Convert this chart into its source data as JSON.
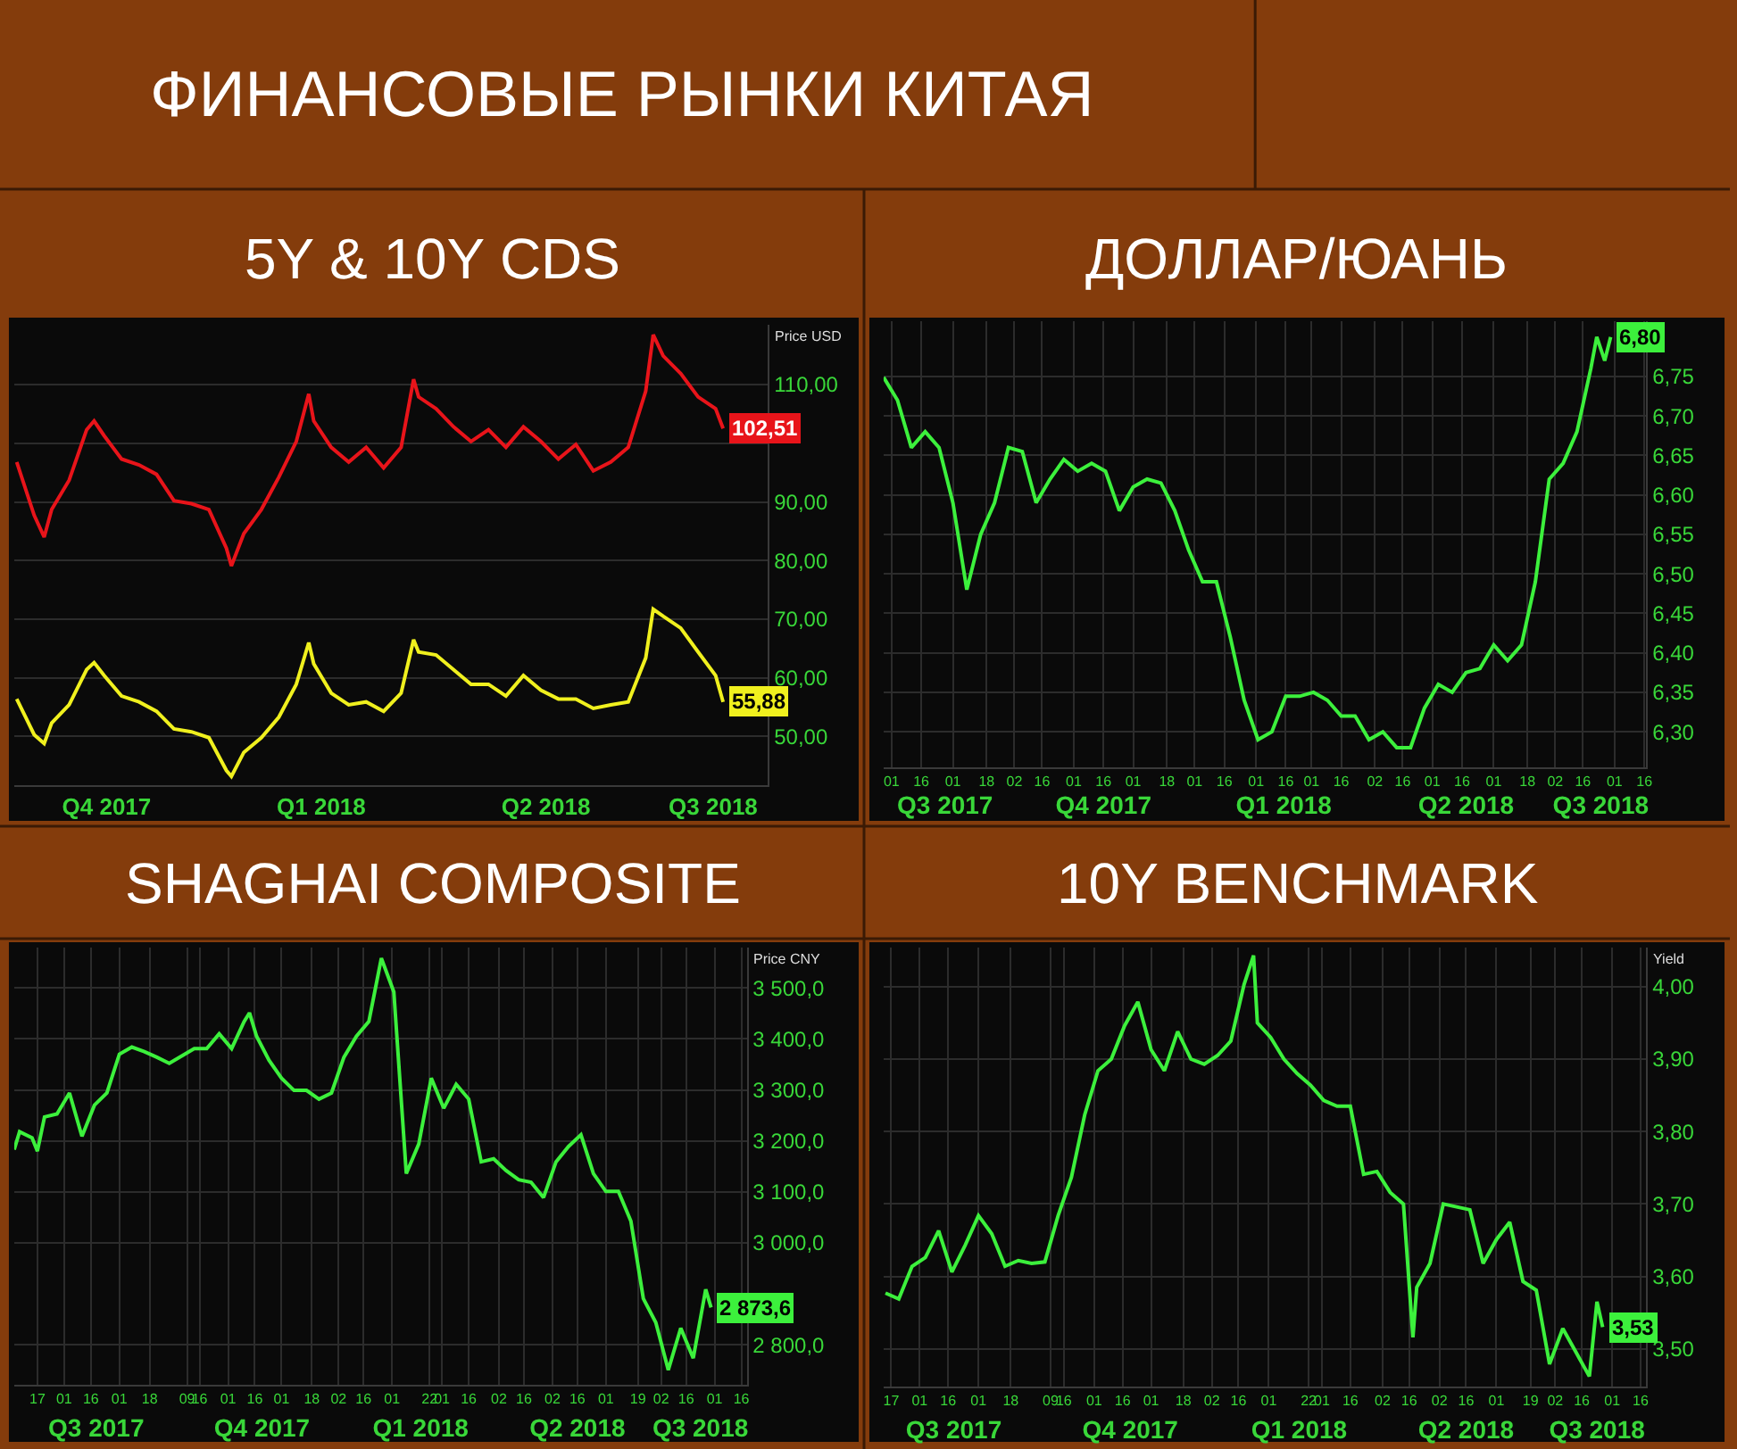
{
  "chart_data": [
    {
      "type": "line",
      "title": "5Y & 10Y CDS",
      "ylabel": "Price USD",
      "annotations": [
        "ФИНАНСОВЫЕ РЫНКИ КИТАЯ"
      ],
      "x": [
        "2017-10-16",
        "2017-10-23",
        "2017-10-27",
        "2017-10-30",
        "2017-11-06",
        "2017-11-13",
        "2017-11-16",
        "2017-11-20",
        "2017-11-27",
        "2017-12-04",
        "2017-12-11",
        "2017-12-18",
        "2017-12-25",
        "2018-01-01",
        "2018-01-08",
        "2018-01-10",
        "2018-01-15",
        "2018-01-22",
        "2018-01-29",
        "2018-02-05",
        "2018-02-10",
        "2018-02-12",
        "2018-02-19",
        "2018-02-26",
        "2018-03-05",
        "2018-03-12",
        "2018-03-19",
        "2018-03-24",
        "2018-03-26",
        "2018-04-02",
        "2018-04-09",
        "2018-04-16",
        "2018-04-23",
        "2018-04-30",
        "2018-05-07",
        "2018-05-14",
        "2018-05-21",
        "2018-05-28",
        "2018-06-04",
        "2018-06-11",
        "2018-06-18",
        "2018-06-25",
        "2018-06-28",
        "2018-07-02",
        "2018-07-09",
        "2018-07-16",
        "2018-07-23",
        "2018-07-26"
      ],
      "series": [
        {
          "color": "#e8141a",
          "values": [
            96.8,
            87.7,
            84,
            88.7,
            93.7,
            102.3,
            103.8,
            101.3,
            97.3,
            96.3,
            94.7,
            90.2,
            89.7,
            88.7,
            82.1,
            79.1,
            84.6,
            88.7,
            94.2,
            100.3,
            108.4,
            103.8,
            99.3,
            96.8,
            99.3,
            95.8,
            99.3,
            110.9,
            107.9,
            105.9,
            102.8,
            100.3,
            102.3,
            99.3,
            102.8,
            100.3,
            97.3,
            99.8,
            95.3,
            96.8,
            99.3,
            108.9,
            118.5,
            114.9,
            111.9,
            107.9,
            105.9,
            102.51
          ],
          "value_labels": [
            null,
            null,
            null,
            null,
            null,
            null,
            null,
            null,
            null,
            null,
            null,
            null,
            null,
            null,
            null,
            null,
            null,
            null,
            null,
            null,
            null,
            null,
            null,
            null,
            null,
            null,
            null,
            null,
            null,
            null,
            null,
            null,
            null,
            null,
            null,
            null,
            null,
            null,
            null,
            null,
            null,
            null,
            null,
            null,
            null,
            null,
            null,
            "102,51"
          ]
        },
        {
          "color": "#f0f01e",
          "values": [
            56.4,
            50.3,
            48.8,
            52.3,
            55.4,
            61.4,
            62.6,
            60.4,
            56.9,
            55.9,
            54.3,
            51.3,
            50.8,
            49.8,
            44.2,
            43.2,
            47.3,
            49.8,
            53.3,
            58.9,
            66,
            62.4,
            57.4,
            55.4,
            55.9,
            54.3,
            57.4,
            66.5,
            64.4,
            63.9,
            61.4,
            58.9,
            58.9,
            56.9,
            60.4,
            57.9,
            56.4,
            56.4,
            54.8,
            55.4,
            55.9,
            63.4,
            71.7,
            70.5,
            68.5,
            64.4,
            60.4,
            55.88
          ],
          "value_labels": [
            null,
            null,
            null,
            null,
            null,
            null,
            null,
            null,
            null,
            null,
            null,
            null,
            null,
            null,
            null,
            null,
            null,
            null,
            null,
            null,
            null,
            null,
            null,
            null,
            null,
            null,
            null,
            null,
            null,
            null,
            null,
            null,
            null,
            null,
            null,
            null,
            null,
            null,
            null,
            null,
            null,
            null,
            null,
            null,
            null,
            null,
            null,
            "55,88"
          ]
        }
      ],
      "xlim": [
        "2017-10-15",
        "2018-08-13"
      ],
      "xticks": [
        {
          "value": "2017-11-21",
          "label": "Q4 2017"
        },
        {
          "value": "2018-02-15",
          "label": "Q1 2018"
        },
        {
          "value": "2018-05-16",
          "label": "Q2 2018"
        },
        {
          "value": "2018-07-22",
          "label": "Q3 2018"
        }
      ],
      "ylim": [
        41.7,
        120.2
      ],
      "yticks": [
        {
          "value": 50,
          "label": "50,00"
        },
        {
          "value": 60,
          "label": "60,00"
        },
        {
          "value": 70,
          "label": "70,00"
        },
        {
          "value": 80,
          "label": "80,00"
        },
        {
          "value": 90,
          "label": "90,00"
        },
        {
          "value": 100,
          "label": null
        },
        {
          "value": 110,
          "label": "110,00"
        }
      ],
      "grid": "y"
    },
    {
      "type": "line",
      "title": "ДОЛЛАР/ЮАНЬ",
      "x": [
        "2017-07-28",
        "2017-08-04",
        "2017-08-11",
        "2017-08-18",
        "2017-08-25",
        "2017-09-01",
        "2017-09-08",
        "2017-09-15",
        "2017-09-22",
        "2017-09-29",
        "2017-10-06",
        "2017-10-13",
        "2017-10-20",
        "2017-10-27",
        "2017-11-03",
        "2017-11-10",
        "2017-11-17",
        "2017-11-24",
        "2017-12-01",
        "2017-12-08",
        "2017-12-15",
        "2017-12-22",
        "2017-12-29",
        "2018-01-05",
        "2018-01-12",
        "2018-01-19",
        "2018-01-26",
        "2018-02-02",
        "2018-02-09",
        "2018-02-16",
        "2018-02-23",
        "2018-03-02",
        "2018-03-09",
        "2018-03-16",
        "2018-03-23",
        "2018-03-30",
        "2018-04-06",
        "2018-04-13",
        "2018-04-20",
        "2018-04-27",
        "2018-05-04",
        "2018-05-11",
        "2018-05-18",
        "2018-05-25",
        "2018-06-01",
        "2018-06-08",
        "2018-06-15",
        "2018-06-22",
        "2018-06-29",
        "2018-07-06",
        "2018-07-13",
        "2018-07-20",
        "2018-07-23",
        "2018-07-27",
        "2018-07-30"
      ],
      "series": [
        {
          "color": "#3cf03c",
          "values": [
            6.749,
            6.72,
            6.66,
            6.68,
            6.66,
            6.59,
            6.48,
            6.55,
            6.59,
            6.66,
            6.655,
            6.59,
            6.62,
            6.645,
            6.63,
            6.64,
            6.63,
            6.58,
            6.61,
            6.62,
            6.615,
            6.58,
            6.53,
            6.49,
            6.49,
            6.42,
            6.34,
            6.29,
            6.3,
            6.345,
            6.345,
            6.35,
            6.34,
            6.32,
            6.32,
            6.29,
            6.3,
            6.28,
            6.28,
            6.33,
            6.36,
            6.35,
            6.375,
            6.38,
            6.41,
            6.39,
            6.41,
            6.49,
            6.62,
            6.64,
            6.68,
            6.76,
            6.8,
            6.77,
            6.8
          ],
          "value_labels": [
            null,
            null,
            null,
            null,
            null,
            null,
            null,
            null,
            null,
            null,
            null,
            null,
            null,
            null,
            null,
            null,
            null,
            null,
            null,
            null,
            null,
            null,
            null,
            null,
            null,
            null,
            null,
            null,
            null,
            null,
            null,
            null,
            null,
            null,
            null,
            null,
            null,
            null,
            null,
            null,
            null,
            null,
            null,
            null,
            null,
            null,
            null,
            null,
            null,
            null,
            null,
            null,
            null,
            null,
            "6,80"
          ]
        }
      ],
      "xlim": [
        "2017-07-28",
        "2018-08-17"
      ],
      "xticks": [
        {
          "value": "2017-08-01",
          "label": "01"
        },
        {
          "value": "2017-08-16",
          "label": "16"
        },
        {
          "value": "2017-09-01",
          "label": "01"
        },
        {
          "value": "2017-09-18",
          "label": "18"
        },
        {
          "value": "2017-10-02",
          "label": "02"
        },
        {
          "value": "2017-10-16",
          "label": "16"
        },
        {
          "value": "2017-11-01",
          "label": "01"
        },
        {
          "value": "2017-11-16",
          "label": "16"
        },
        {
          "value": "2017-12-01",
          "label": "01"
        },
        {
          "value": "2017-12-18",
          "label": "18"
        },
        {
          "value": "2018-01-01",
          "label": "01"
        },
        {
          "value": "2018-01-16",
          "label": "16"
        },
        {
          "value": "2018-02-01",
          "label": "01"
        },
        {
          "value": "2018-02-16",
          "label": "16"
        },
        {
          "value": "2018-03-01",
          "label": "01"
        },
        {
          "value": "2018-03-16",
          "label": "16"
        },
        {
          "value": "2018-04-02",
          "label": "02"
        },
        {
          "value": "2018-04-16",
          "label": "16"
        },
        {
          "value": "2018-05-01",
          "label": "01"
        },
        {
          "value": "2018-05-16",
          "label": "16"
        },
        {
          "value": "2018-06-01",
          "label": "01"
        },
        {
          "value": "2018-06-18",
          "label": "18"
        },
        {
          "value": "2018-07-02",
          "label": "02"
        },
        {
          "value": "2018-07-16",
          "label": "16"
        },
        {
          "value": "2018-08-01",
          "label": "01"
        },
        {
          "value": "2018-08-16",
          "label": "16"
        }
      ],
      "x2lim": [
        "2017-07-28",
        "2018-08-17"
      ],
      "x2ticks": [
        {
          "value": "2017-08-28",
          "label": "Q3 2017"
        },
        {
          "value": "2017-11-16",
          "label": "Q4 2017"
        },
        {
          "value": "2018-02-15",
          "label": "Q1 2018"
        },
        {
          "value": "2018-05-18",
          "label": "Q2 2018"
        },
        {
          "value": "2018-07-25",
          "label": "Q3 2018"
        }
      ],
      "ylim": [
        6.255,
        6.82
      ],
      "yticks": [
        {
          "value": 6.3,
          "label": "6,30"
        },
        {
          "value": 6.35,
          "label": "6,35"
        },
        {
          "value": 6.4,
          "label": "6,40"
        },
        {
          "value": 6.45,
          "label": "6,45"
        },
        {
          "value": 6.5,
          "label": "6,50"
        },
        {
          "value": 6.55,
          "label": "6,55"
        },
        {
          "value": 6.6,
          "label": "6,60"
        },
        {
          "value": 6.65,
          "label": "6,65"
        },
        {
          "value": 6.7,
          "label": "6,70"
        },
        {
          "value": 6.75,
          "label": "6,75"
        }
      ],
      "grid": true
    },
    {
      "type": "line",
      "title": "SHAGHAI COMPOSITE",
      "ylabel": "Price CNY",
      "x": [
        "2017-07-04",
        "2017-07-07",
        "2017-07-14",
        "2017-07-17",
        "2017-07-21",
        "2017-07-28",
        "2017-08-04",
        "2017-08-11",
        "2017-08-18",
        "2017-08-25",
        "2017-09-01",
        "2017-09-08",
        "2017-09-15",
        "2017-09-22",
        "2017-09-29",
        "2017-10-13",
        "2017-10-20",
        "2017-10-27",
        "2017-11-03",
        "2017-11-10",
        "2017-11-13",
        "2017-11-17",
        "2017-11-24",
        "2017-12-01",
        "2017-12-08",
        "2017-12-15",
        "2017-12-22",
        "2017-12-29",
        "2018-01-05",
        "2018-01-12",
        "2018-01-19",
        "2018-01-26",
        "2018-02-02",
        "2018-02-09",
        "2018-02-16",
        "2018-02-23",
        "2018-03-02",
        "2018-03-09",
        "2018-03-16",
        "2018-03-23",
        "2018-03-30",
        "2018-04-06",
        "2018-04-13",
        "2018-04-20",
        "2018-04-27",
        "2018-05-04",
        "2018-05-11",
        "2018-05-18",
        "2018-05-25",
        "2018-06-01",
        "2018-06-08",
        "2018-06-15",
        "2018-06-22",
        "2018-06-29",
        "2018-07-06",
        "2018-07-13",
        "2018-07-20",
        "2018-07-27",
        "2018-07-30"
      ],
      "series": [
        {
          "color": "#3cf03c",
          "values": [
            3183,
            3218,
            3206,
            3180,
            3247,
            3253,
            3294,
            3209,
            3270,
            3294,
            3370,
            3384,
            3375,
            3364,
            3352,
            3381,
            3381,
            3410,
            3381,
            3434,
            3451,
            3405,
            3358,
            3323,
            3299,
            3299,
            3282,
            3294,
            3364,
            3405,
            3434,
            3558,
            3492,
            3136,
            3194,
            3323,
            3264,
            3311,
            3282,
            3159,
            3165,
            3142,
            3124,
            3119,
            3089,
            3159,
            3189,
            3212,
            3136,
            3101,
            3101,
            3043,
            2891,
            2844,
            2751,
            2833,
            2774,
            2909,
            2873.6
          ],
          "value_labels": [
            null,
            null,
            null,
            null,
            null,
            null,
            null,
            null,
            null,
            null,
            null,
            null,
            null,
            null,
            null,
            null,
            null,
            null,
            null,
            null,
            null,
            null,
            null,
            null,
            null,
            null,
            null,
            null,
            null,
            null,
            null,
            null,
            null,
            null,
            null,
            null,
            null,
            null,
            null,
            null,
            null,
            null,
            null,
            null,
            null,
            null,
            null,
            null,
            null,
            null,
            null,
            null,
            null,
            null,
            null,
            null,
            null,
            null,
            "2 873,6"
          ]
        }
      ],
      "xlim": [
        "2017-07-04",
        "2018-08-19"
      ],
      "xticks": [
        {
          "value": "2017-07-17",
          "label": "17"
        },
        {
          "value": "2017-08-01",
          "label": "01"
        },
        {
          "value": "2017-08-16",
          "label": "16"
        },
        {
          "value": "2017-09-01",
          "label": "01"
        },
        {
          "value": "2017-09-18",
          "label": "18"
        },
        {
          "value": "2017-10-09",
          "label": "09"
        },
        {
          "value": "2017-10-16",
          "label": "16"
        },
        {
          "value": "2017-11-01",
          "label": "01"
        },
        {
          "value": "2017-11-16",
          "label": "16"
        },
        {
          "value": "2017-12-01",
          "label": "01"
        },
        {
          "value": "2017-12-18",
          "label": "18"
        },
        {
          "value": "2018-01-02",
          "label": "02"
        },
        {
          "value": "2018-01-16",
          "label": "16"
        },
        {
          "value": "2018-02-01",
          "label": "01"
        },
        {
          "value": "2018-02-22",
          "label": "22"
        },
        {
          "value": "2018-03-01",
          "label": "01"
        },
        {
          "value": "2018-03-16",
          "label": "16"
        },
        {
          "value": "2018-04-02",
          "label": "02"
        },
        {
          "value": "2018-04-16",
          "label": "16"
        },
        {
          "value": "2018-05-02",
          "label": "02"
        },
        {
          "value": "2018-05-16",
          "label": "16"
        },
        {
          "value": "2018-06-01",
          "label": "01"
        },
        {
          "value": "2018-06-19",
          "label": "19"
        },
        {
          "value": "2018-07-02",
          "label": "02"
        },
        {
          "value": "2018-07-16",
          "label": "16"
        },
        {
          "value": "2018-08-01",
          "label": "01"
        },
        {
          "value": "2018-08-16",
          "label": "16"
        }
      ],
      "x2lim": [
        "2017-07-04",
        "2018-08-19"
      ],
      "x2ticks": [
        {
          "value": "2017-08-19",
          "label": "Q3 2017"
        },
        {
          "value": "2017-11-20",
          "label": "Q4 2017"
        },
        {
          "value": "2018-02-17",
          "label": "Q1 2018"
        },
        {
          "value": "2018-05-16",
          "label": "Q2 2018"
        },
        {
          "value": "2018-07-24",
          "label": "Q3 2018"
        }
      ],
      "ylim": [
        2722,
        3579
      ],
      "yticks": [
        {
          "value": 2800,
          "label": "2 800,0"
        },
        {
          "value": 3000,
          "label": "3 000,0"
        },
        {
          "value": 3100,
          "label": "3 100,0"
        },
        {
          "value": 3200,
          "label": "3 200,0"
        },
        {
          "value": 3300,
          "label": "3 300,0"
        },
        {
          "value": 3400,
          "label": "3 400,0"
        },
        {
          "value": 3500,
          "label": "3 500,0"
        }
      ],
      "grid": true
    },
    {
      "type": "line",
      "title": "10Y BENCHMARK",
      "ylabel": "Yield",
      "x": [
        "2017-07-14",
        "2017-07-21",
        "2017-07-28",
        "2017-08-04",
        "2017-08-11",
        "2017-08-18",
        "2017-08-25",
        "2017-09-01",
        "2017-09-08",
        "2017-09-15",
        "2017-09-22",
        "2017-09-29",
        "2017-10-06",
        "2017-10-13",
        "2017-10-20",
        "2017-10-27",
        "2017-11-03",
        "2017-11-10",
        "2017-11-17",
        "2017-11-24",
        "2017-12-01",
        "2017-12-08",
        "2017-12-15",
        "2017-12-22",
        "2017-12-29",
        "2018-01-05",
        "2018-01-12",
        "2018-01-19",
        "2018-01-24",
        "2018-01-26",
        "2018-02-02",
        "2018-02-09",
        "2018-02-16",
        "2018-02-23",
        "2018-03-02",
        "2018-03-09",
        "2018-03-16",
        "2018-03-23",
        "2018-03-30",
        "2018-04-06",
        "2018-04-13",
        "2018-04-18",
        "2018-04-20",
        "2018-04-27",
        "2018-05-04",
        "2018-05-11",
        "2018-05-18",
        "2018-05-25",
        "2018-06-01",
        "2018-06-08",
        "2018-06-15",
        "2018-06-22",
        "2018-06-29",
        "2018-07-06",
        "2018-07-13",
        "2018-07-20",
        "2018-07-24",
        "2018-07-27"
      ],
      "series": [
        {
          "color": "#3cf03c",
          "values": [
            3.577,
            3.569,
            3.614,
            3.626,
            3.663,
            3.606,
            3.643,
            3.684,
            3.659,
            3.614,
            3.622,
            3.618,
            3.62,
            3.684,
            3.737,
            3.823,
            3.884,
            3.9,
            3.946,
            3.979,
            3.913,
            3.884,
            3.938,
            3.9,
            3.893,
            3.905,
            3.925,
            4.003,
            4.043,
            3.95,
            3.93,
            3.9,
            3.88,
            3.864,
            3.843,
            3.835,
            3.835,
            3.741,
            3.745,
            3.716,
            3.7,
            3.516,
            3.585,
            3.618,
            3.7,
            3.696,
            3.692,
            3.618,
            3.651,
            3.675,
            3.593,
            3.581,
            3.479,
            3.528,
            3.495,
            3.462,
            3.565,
            3.53
          ],
          "value_labels": [
            null,
            null,
            null,
            null,
            null,
            null,
            null,
            null,
            null,
            null,
            null,
            null,
            null,
            null,
            null,
            null,
            null,
            null,
            null,
            null,
            null,
            null,
            null,
            null,
            null,
            null,
            null,
            null,
            null,
            null,
            null,
            null,
            null,
            null,
            null,
            null,
            null,
            null,
            null,
            null,
            null,
            null,
            null,
            null,
            null,
            null,
            null,
            null,
            null,
            null,
            null,
            null,
            null,
            null,
            null,
            null,
            null,
            "3,53"
          ]
        }
      ],
      "xlim": [
        "2017-07-13",
        "2018-08-19"
      ],
      "xticks": [
        {
          "value": "2017-07-17",
          "label": "17"
        },
        {
          "value": "2017-08-01",
          "label": "01"
        },
        {
          "value": "2017-08-16",
          "label": "16"
        },
        {
          "value": "2017-09-01",
          "label": "01"
        },
        {
          "value": "2017-09-18",
          "label": "18"
        },
        {
          "value": "2017-10-09",
          "label": "09"
        },
        {
          "value": "2017-10-16",
          "label": "16"
        },
        {
          "value": "2017-11-01",
          "label": "01"
        },
        {
          "value": "2017-11-16",
          "label": "16"
        },
        {
          "value": "2017-12-01",
          "label": "01"
        },
        {
          "value": "2017-12-18",
          "label": "18"
        },
        {
          "value": "2018-01-02",
          "label": "02"
        },
        {
          "value": "2018-01-16",
          "label": "16"
        },
        {
          "value": "2018-02-01",
          "label": "01"
        },
        {
          "value": "2018-02-22",
          "label": "22"
        },
        {
          "value": "2018-03-01",
          "label": "01"
        },
        {
          "value": "2018-03-16",
          "label": "16"
        },
        {
          "value": "2018-04-02",
          "label": "02"
        },
        {
          "value": "2018-04-16",
          "label": "16"
        },
        {
          "value": "2018-05-02",
          "label": "02"
        },
        {
          "value": "2018-05-16",
          "label": "16"
        },
        {
          "value": "2018-06-01",
          "label": "01"
        },
        {
          "value": "2018-06-19",
          "label": "19"
        },
        {
          "value": "2018-07-02",
          "label": "02"
        },
        {
          "value": "2018-07-16",
          "label": "16"
        },
        {
          "value": "2018-08-01",
          "label": "01"
        },
        {
          "value": "2018-08-16",
          "label": "16"
        }
      ],
      "x2lim": [
        "2017-07-13",
        "2018-08-19"
      ],
      "x2ticks": [
        {
          "value": "2017-08-19",
          "label": "Q3 2017"
        },
        {
          "value": "2017-11-20",
          "label": "Q4 2017"
        },
        {
          "value": "2018-02-17",
          "label": "Q1 2018"
        },
        {
          "value": "2018-05-16",
          "label": "Q2 2018"
        },
        {
          "value": "2018-07-24",
          "label": "Q3 2018"
        }
      ],
      "ylim": [
        3.448,
        4.054
      ],
      "yticks": [
        {
          "value": 3.5,
          "label": "3,50"
        },
        {
          "value": 3.6,
          "label": "3,60"
        },
        {
          "value": 3.7,
          "label": "3,70"
        },
        {
          "value": 3.8,
          "label": "3,80"
        },
        {
          "value": 3.9,
          "label": "3,90"
        },
        {
          "value": 4.0,
          "label": "4,00"
        }
      ],
      "grid": true
    }
  ]
}
